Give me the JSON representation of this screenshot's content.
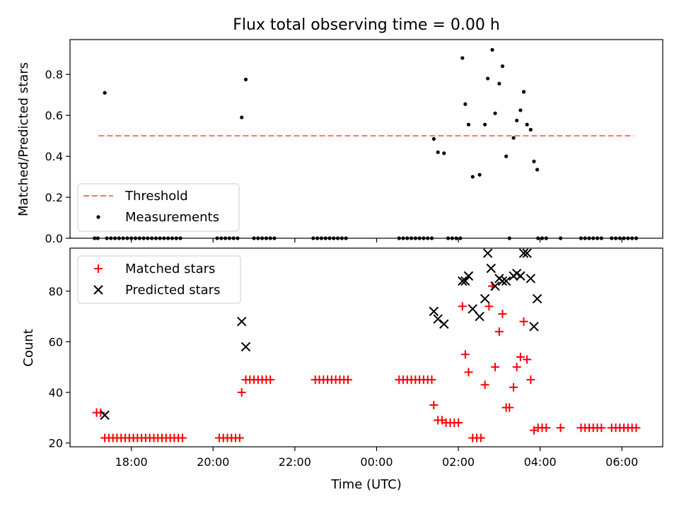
{
  "chart_data": {
    "type": "scatter",
    "title": "Flux total observing time = 0.00 h",
    "xlabel": "Time (UTC)",
    "x_axis": {
      "unit": "UTC time, hours relative to midnight",
      "range": [
        -7.5,
        7.0
      ],
      "ticks": [
        {
          "v": -6,
          "label": "18:00"
        },
        {
          "v": -4,
          "label": "20:00"
        },
        {
          "v": -2,
          "label": "22:00"
        },
        {
          "v": 0,
          "label": "00:00"
        },
        {
          "v": 2,
          "label": "02:00"
        },
        {
          "v": 4,
          "label": "04:00"
        },
        {
          "v": 6,
          "label": "06:00"
        }
      ]
    },
    "panels": [
      {
        "id": "ratio",
        "ylabel": "Matched/Predicted stars",
        "ylim": [
          0,
          0.97
        ],
        "yticks": [
          {
            "v": 0,
            "label": "0.0"
          },
          {
            "v": 0.2,
            "label": "0.2"
          },
          {
            "v": 0.4,
            "label": "0.4"
          },
          {
            "v": 0.6,
            "label": "0.6"
          },
          {
            "v": 0.8,
            "label": "0.8"
          }
        ],
        "legend": {
          "position": "lower-left",
          "entries": [
            {
              "name": "Threshold",
              "marker": "dashed-line",
              "color": "#ff7070"
            },
            {
              "name": "Measurements",
              "marker": "dot",
              "color": "#000000"
            }
          ]
        },
        "threshold": {
          "name": "Threshold",
          "y": 0.5,
          "x": [
            -6.8,
            6.3
          ],
          "color": "#ff7070"
        },
        "measurements": {
          "name": "Measurements",
          "color": "#000000",
          "points": [
            [
              -6.65,
              0.71
            ],
            [
              -3.3,
              0.59
            ],
            [
              -3.2,
              0.775
            ],
            [
              1.4,
              0.485
            ],
            [
              1.5,
              0.42
            ],
            [
              1.65,
              0.415
            ],
            [
              2.1,
              0.88
            ],
            [
              2.17,
              0.655
            ],
            [
              2.25,
              0.555
            ],
            [
              2.35,
              0.3
            ],
            [
              2.52,
              0.31
            ],
            [
              2.65,
              0.555
            ],
            [
              2.72,
              0.78
            ],
            [
              2.83,
              0.92
            ],
            [
              2.9,
              0.61
            ],
            [
              3.0,
              0.755
            ],
            [
              3.08,
              0.84
            ],
            [
              3.17,
              0.4
            ],
            [
              3.35,
              0.49
            ],
            [
              3.43,
              0.575
            ],
            [
              3.52,
              0.625
            ],
            [
              3.6,
              0.715
            ],
            [
              3.68,
              0.555
            ],
            [
              3.77,
              0.53
            ],
            [
              3.85,
              0.375
            ],
            [
              3.93,
              0.335
            ],
            [
              -6.9,
              0
            ],
            [
              -6.82,
              0
            ],
            [
              -6.6,
              0
            ],
            [
              -6.5,
              0
            ],
            [
              -6.4,
              0
            ],
            [
              -6.3,
              0
            ],
            [
              -6.2,
              0
            ],
            [
              -6.1,
              0
            ],
            [
              -6.0,
              0
            ],
            [
              -5.9,
              0
            ],
            [
              -5.8,
              0
            ],
            [
              -5.7,
              0
            ],
            [
              -5.6,
              0
            ],
            [
              -5.5,
              0
            ],
            [
              -5.4,
              0
            ],
            [
              -5.3,
              0
            ],
            [
              -5.2,
              0
            ],
            [
              -5.1,
              0
            ],
            [
              -5.0,
              0
            ],
            [
              -4.9,
              0
            ],
            [
              -4.8,
              0
            ],
            [
              -3.9,
              0
            ],
            [
              -3.8,
              0
            ],
            [
              -3.7,
              0
            ],
            [
              -3.6,
              0
            ],
            [
              -3.5,
              0
            ],
            [
              -3.4,
              0
            ],
            [
              -3.0,
              0
            ],
            [
              -2.9,
              0
            ],
            [
              -2.8,
              0
            ],
            [
              -2.7,
              0
            ],
            [
              -2.6,
              0
            ],
            [
              -2.5,
              0
            ],
            [
              -1.55,
              0
            ],
            [
              -1.45,
              0
            ],
            [
              -1.35,
              0
            ],
            [
              -1.25,
              0
            ],
            [
              -1.15,
              0
            ],
            [
              -1.05,
              0
            ],
            [
              -0.95,
              0
            ],
            [
              -0.85,
              0
            ],
            [
              -0.75,
              0
            ],
            [
              0.55,
              0
            ],
            [
              0.65,
              0
            ],
            [
              0.75,
              0
            ],
            [
              0.85,
              0
            ],
            [
              0.95,
              0
            ],
            [
              1.05,
              0
            ],
            [
              1.15,
              0
            ],
            [
              1.25,
              0
            ],
            [
              1.35,
              0
            ],
            [
              1.75,
              0
            ],
            [
              1.85,
              0
            ],
            [
              1.95,
              0
            ],
            [
              2.05,
              0
            ],
            [
              3.25,
              0
            ],
            [
              3.95,
              0
            ],
            [
              4.05,
              0
            ],
            [
              4.15,
              0
            ],
            [
              4.5,
              0
            ],
            [
              5.0,
              0
            ],
            [
              5.1,
              0
            ],
            [
              5.2,
              0
            ],
            [
              5.3,
              0
            ],
            [
              5.4,
              0
            ],
            [
              5.5,
              0
            ],
            [
              5.75,
              0
            ],
            [
              5.85,
              0
            ],
            [
              5.95,
              0
            ],
            [
              6.05,
              0
            ],
            [
              6.15,
              0
            ],
            [
              6.25,
              0
            ],
            [
              6.35,
              0
            ]
          ]
        }
      },
      {
        "id": "count",
        "ylabel": "Count",
        "ylim": [
          18.5,
          97
        ],
        "yticks": [
          {
            "v": 20,
            "label": "20"
          },
          {
            "v": 40,
            "label": "40"
          },
          {
            "v": 60,
            "label": "60"
          },
          {
            "v": 80,
            "label": "80"
          }
        ],
        "legend": {
          "position": "upper-left",
          "entries": [
            {
              "name": "Matched stars",
              "marker": "plus",
              "color": "#ff0000"
            },
            {
              "name": "Predicted stars",
              "marker": "x",
              "color": "#000000"
            }
          ]
        },
        "series": [
          {
            "name": "Matched stars",
            "marker": "plus",
            "color": "#ff0000",
            "points": [
              [
                -6.85,
                32
              ],
              [
                -6.75,
                32
              ],
              [
                -6.65,
                22
              ],
              [
                -6.55,
                22
              ],
              [
                -6.45,
                22
              ],
              [
                -6.35,
                22
              ],
              [
                -6.25,
                22
              ],
              [
                -6.15,
                22
              ],
              [
                -6.05,
                22
              ],
              [
                -5.95,
                22
              ],
              [
                -5.85,
                22
              ],
              [
                -5.75,
                22
              ],
              [
                -5.65,
                22
              ],
              [
                -5.55,
                22
              ],
              [
                -5.45,
                22
              ],
              [
                -5.35,
                22
              ],
              [
                -5.25,
                22
              ],
              [
                -5.15,
                22
              ],
              [
                -5.05,
                22
              ],
              [
                -4.95,
                22
              ],
              [
                -4.85,
                22
              ],
              [
                -4.75,
                22
              ],
              [
                -3.85,
                22
              ],
              [
                -3.75,
                22
              ],
              [
                -3.65,
                22
              ],
              [
                -3.55,
                22
              ],
              [
                -3.45,
                22
              ],
              [
                -3.35,
                22
              ],
              [
                -3.3,
                40
              ],
              [
                -3.2,
                45
              ],
              [
                -3.1,
                45
              ],
              [
                -3.0,
                45
              ],
              [
                -2.9,
                45
              ],
              [
                -2.8,
                45
              ],
              [
                -2.7,
                45
              ],
              [
                -2.6,
                45
              ],
              [
                -1.5,
                45
              ],
              [
                -1.4,
                45
              ],
              [
                -1.3,
                45
              ],
              [
                -1.2,
                45
              ],
              [
                -1.1,
                45
              ],
              [
                -1.0,
                45
              ],
              [
                -0.9,
                45
              ],
              [
                -0.8,
                45
              ],
              [
                -0.7,
                45
              ],
              [
                0.55,
                45
              ],
              [
                0.65,
                45
              ],
              [
                0.75,
                45
              ],
              [
                0.85,
                45
              ],
              [
                0.95,
                45
              ],
              [
                1.05,
                45
              ],
              [
                1.15,
                45
              ],
              [
                1.25,
                45
              ],
              [
                1.35,
                45
              ],
              [
                1.4,
                35
              ],
              [
                1.5,
                29
              ],
              [
                1.6,
                29
              ],
              [
                1.7,
                28
              ],
              [
                1.8,
                28
              ],
              [
                1.9,
                28
              ],
              [
                2.0,
                28
              ],
              [
                2.1,
                74
              ],
              [
                2.17,
                55
              ],
              [
                2.25,
                48
              ],
              [
                2.35,
                22
              ],
              [
                2.45,
                22
              ],
              [
                2.55,
                22
              ],
              [
                2.65,
                43
              ],
              [
                2.75,
                74
              ],
              [
                2.83,
                82
              ],
              [
                2.9,
                50
              ],
              [
                3.0,
                64
              ],
              [
                3.08,
                71
              ],
              [
                3.17,
                34
              ],
              [
                3.25,
                34
              ],
              [
                3.35,
                42
              ],
              [
                3.43,
                50
              ],
              [
                3.52,
                54
              ],
              [
                3.6,
                68
              ],
              [
                3.68,
                53
              ],
              [
                3.77,
                45
              ],
              [
                3.85,
                25
              ],
              [
                3.95,
                26
              ],
              [
                4.05,
                26
              ],
              [
                4.15,
                26
              ],
              [
                4.5,
                26
              ],
              [
                5.0,
                26
              ],
              [
                5.1,
                26
              ],
              [
                5.2,
                26
              ],
              [
                5.3,
                26
              ],
              [
                5.4,
                26
              ],
              [
                5.5,
                26
              ],
              [
                5.75,
                26
              ],
              [
                5.85,
                26
              ],
              [
                5.95,
                26
              ],
              [
                6.05,
                26
              ],
              [
                6.15,
                26
              ],
              [
                6.25,
                26
              ],
              [
                6.35,
                26
              ]
            ]
          },
          {
            "name": "Predicted stars",
            "marker": "x",
            "color": "#000000",
            "points": [
              [
                -6.65,
                31
              ],
              [
                -3.3,
                68
              ],
              [
                -3.2,
                58
              ],
              [
                1.4,
                72
              ],
              [
                1.5,
                69
              ],
              [
                1.65,
                67
              ],
              [
                2.1,
                84
              ],
              [
                2.17,
                84
              ],
              [
                2.25,
                86
              ],
              [
                2.35,
                73
              ],
              [
                2.52,
                70
              ],
              [
                2.65,
                77
              ],
              [
                2.72,
                95
              ],
              [
                2.8,
                89
              ],
              [
                2.9,
                82
              ],
              [
                3.0,
                85
              ],
              [
                3.08,
                84
              ],
              [
                3.17,
                84
              ],
              [
                3.35,
                86
              ],
              [
                3.43,
                87
              ],
              [
                3.52,
                86
              ],
              [
                3.6,
                95
              ],
              [
                3.68,
                95
              ],
              [
                3.77,
                85
              ],
              [
                3.85,
                66
              ],
              [
                3.93,
                77
              ]
            ]
          }
        ]
      }
    ]
  }
}
